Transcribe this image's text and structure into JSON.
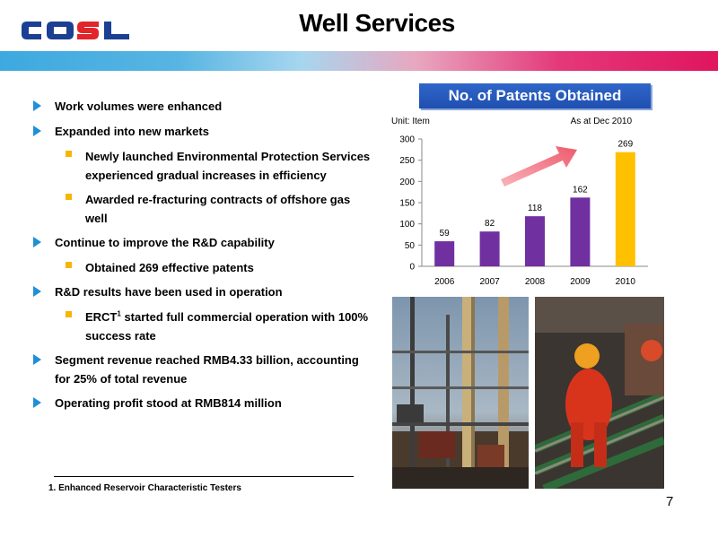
{
  "header": {
    "logo_text": "COSL",
    "title": "Well Services"
  },
  "bullets": [
    {
      "level": 1,
      "text": "Work volumes were enhanced"
    },
    {
      "level": 1,
      "text": "Expanded into new markets"
    },
    {
      "level": 2,
      "line1": "Newly launched Environmental Protection Services",
      "line2": "experienced gradual increases in efficiency"
    },
    {
      "level": 2,
      "line1": "Awarded re-fracturing contracts of offshore gas",
      "line2": "well"
    },
    {
      "level": 1,
      "text": "Continue to improve the R&D capability"
    },
    {
      "level": 2,
      "text": "Obtained 269 effective patents"
    },
    {
      "level": 1,
      "text": "R&D results have been used in operation"
    },
    {
      "level": 2,
      "line1_pre": "ERCT",
      "line1_sup": "1",
      "line1_post": " started full commercial operation with 100%",
      "line2": "success rate"
    },
    {
      "level": 1,
      "line1": "Segment revenue reached RMB4.33 billion, accounting",
      "line2": "for 25% of total revenue"
    },
    {
      "level": 1,
      "text": "Operating profit stood at RMB814 million"
    }
  ],
  "footnote": "1. Enhanced Reservoir Characteristic Testers",
  "page_number": "7",
  "chart_data": {
    "type": "bar",
    "title": "No. of Patents Obtained",
    "unit_label": "Unit: Item",
    "as_at_label": "As at Dec 2010",
    "categories": [
      "2006",
      "2007",
      "2008",
      "2009",
      "2010"
    ],
    "values": [
      59,
      82,
      118,
      162,
      269
    ],
    "ylim": [
      0,
      300
    ],
    "yticks": [
      0,
      50,
      100,
      150,
      200,
      250,
      300
    ],
    "colors": [
      "#7030a0",
      "#7030a0",
      "#7030a0",
      "#7030a0",
      "#ffc000"
    ],
    "grid": false
  },
  "colors": {
    "logo_blue": "#1b3f93",
    "logo_red": "#e2242b",
    "bullet_triangle": "#1f8fd6",
    "bullet_square": "#f7b500",
    "arrow": "#f06575"
  },
  "photos": [
    {
      "name": "drilling-rig-photo"
    },
    {
      "name": "worker-pipe-photo"
    }
  ]
}
